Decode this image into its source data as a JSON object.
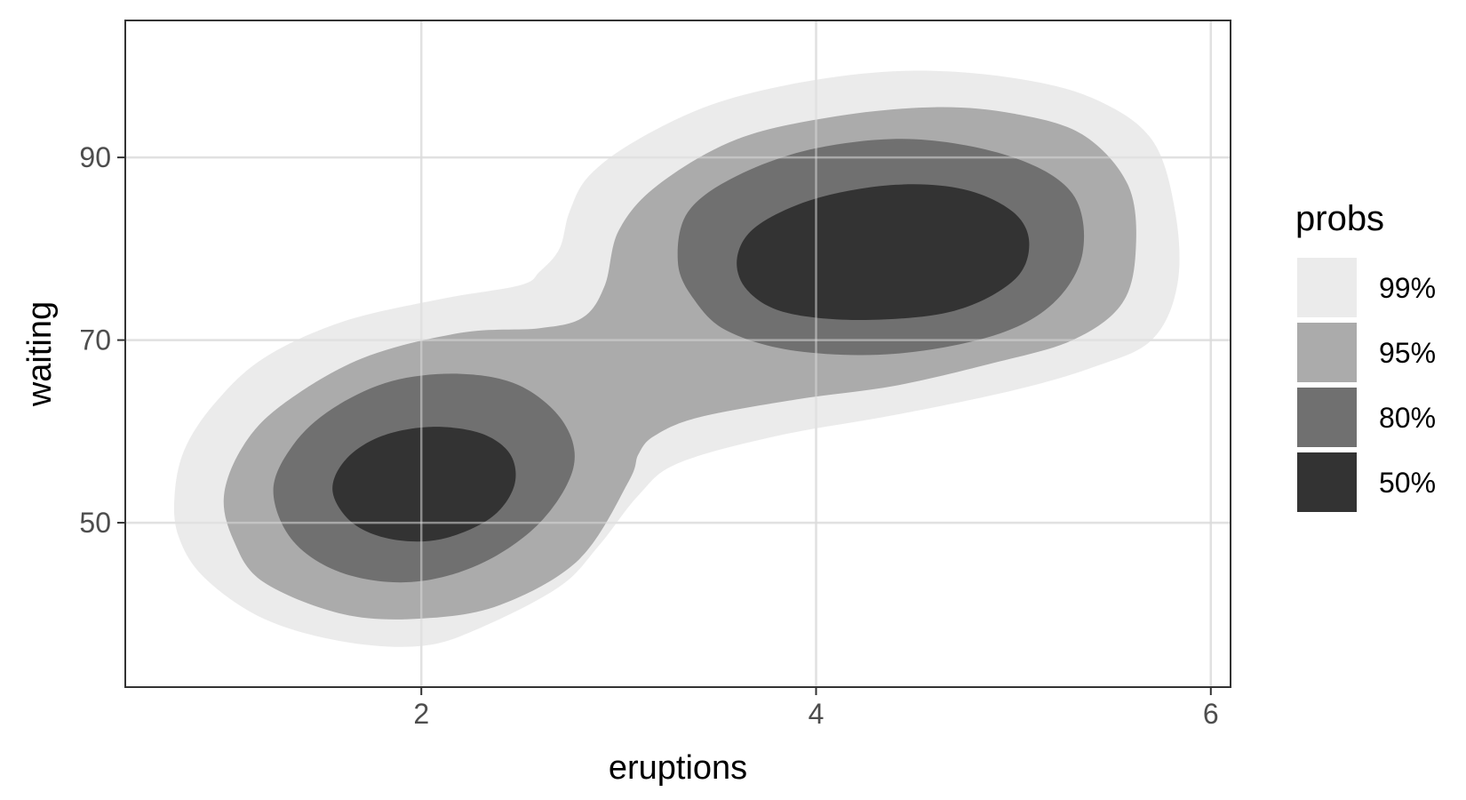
{
  "chart_data": {
    "type": "density_contour",
    "xlabel": "eruptions",
    "ylabel": "waiting",
    "xlim": [
      0.5,
      6.1
    ],
    "ylim": [
      32,
      105
    ],
    "x_ticks": [
      2,
      4,
      6
    ],
    "y_ticks": [
      50,
      70,
      90
    ],
    "x_tick_labels": [
      "2",
      "4",
      "6"
    ],
    "y_tick_labels": [
      "50",
      "70",
      "90"
    ],
    "grid": true,
    "legend": {
      "title": "probs",
      "position": "right",
      "entries": [
        {
          "label": "99%",
          "color": "#ebebeb"
        },
        {
          "label": "95%",
          "color": "#ababab"
        },
        {
          "label": "80%",
          "color": "#707070"
        },
        {
          "label": "50%",
          "color": "#333333"
        }
      ]
    },
    "series": [
      {
        "name": "99%",
        "color": "#ebebeb",
        "polygons": [
          [
            [
              0.75,
              53
            ],
            [
              0.8,
              58
            ],
            [
              0.95,
              63
            ],
            [
              1.2,
              68
            ],
            [
              1.6,
              72
            ],
            [
              2.1,
              74.5
            ],
            [
              2.5,
              76
            ],
            [
              2.6,
              77.5
            ],
            [
              2.7,
              80
            ],
            [
              2.75,
              84
            ],
            [
              2.85,
              88
            ],
            [
              3.1,
              92
            ],
            [
              3.5,
              96
            ],
            [
              4.0,
              98.5
            ],
            [
              4.5,
              99.5
            ],
            [
              5.0,
              98.7
            ],
            [
              5.4,
              96.5
            ],
            [
              5.7,
              92
            ],
            [
              5.82,
              84
            ],
            [
              5.83,
              76
            ],
            [
              5.7,
              70
            ],
            [
              5.4,
              67
            ],
            [
              5.0,
              64.5
            ],
            [
              4.4,
              61.8
            ],
            [
              3.8,
              59.5
            ],
            [
              3.3,
              56.5
            ],
            [
              3.1,
              53
            ],
            [
              2.9,
              47.5
            ],
            [
              2.7,
              43
            ],
            [
              2.3,
              38.5
            ],
            [
              2.0,
              36.5
            ],
            [
              1.6,
              37
            ],
            [
              1.2,
              39.5
            ],
            [
              0.9,
              44
            ],
            [
              0.77,
              48.5
            ]
          ]
        ]
      },
      {
        "name": "95%",
        "color": "#ababab",
        "polygons": [
          [
            [
              1.0,
              53
            ],
            [
              1.1,
              58.5
            ],
            [
              1.3,
              63
            ],
            [
              1.7,
              68
            ],
            [
              2.2,
              70.8
            ],
            [
              2.6,
              71.3
            ],
            [
              2.82,
              72.5
            ],
            [
              2.93,
              76
            ],
            [
              3.0,
              82
            ],
            [
              3.2,
              87
            ],
            [
              3.6,
              92
            ],
            [
              4.1,
              94.5
            ],
            [
              4.6,
              95.5
            ],
            [
              5.0,
              94.8
            ],
            [
              5.35,
              92.5
            ],
            [
              5.58,
              87
            ],
            [
              5.62,
              80
            ],
            [
              5.55,
              74
            ],
            [
              5.3,
              70
            ],
            [
              4.9,
              67.5
            ],
            [
              4.4,
              65
            ],
            [
              3.9,
              63.5
            ],
            [
              3.4,
              61.5
            ],
            [
              3.18,
              59.5
            ],
            [
              3.1,
              57.5
            ],
            [
              3.05,
              54.5
            ],
            [
              2.8,
              46
            ],
            [
              2.4,
              41
            ],
            [
              2.0,
              39.5
            ],
            [
              1.6,
              40
            ],
            [
              1.2,
              43.5
            ],
            [
              1.05,
              48
            ]
          ]
        ]
      },
      {
        "name": "80%",
        "color": "#707070",
        "polygons": [
          [
            [
              1.25,
              53.5
            ],
            [
              1.35,
              58.5
            ],
            [
              1.55,
              62.5
            ],
            [
              1.85,
              65.5
            ],
            [
              2.2,
              66.3
            ],
            [
              2.5,
              65
            ],
            [
              2.72,
              61
            ],
            [
              2.77,
              56
            ],
            [
              2.6,
              50
            ],
            [
              2.3,
              45.5
            ],
            [
              1.95,
              43.5
            ],
            [
              1.6,
              44.5
            ],
            [
              1.35,
              48
            ]
          ],
          [
            [
              3.3,
              78.5
            ],
            [
              3.35,
              84
            ],
            [
              3.6,
              88
            ],
            [
              4.0,
              91
            ],
            [
              4.5,
              92
            ],
            [
              5.0,
              90
            ],
            [
              5.3,
              86
            ],
            [
              5.35,
              79.5
            ],
            [
              5.2,
              74
            ],
            [
              4.9,
              70.5
            ],
            [
              4.4,
              68.5
            ],
            [
              3.9,
              68.8
            ],
            [
              3.55,
              71
            ],
            [
              3.38,
              74.5
            ]
          ]
        ]
      },
      {
        "name": "50%",
        "color": "#333333",
        "polygons": [
          [
            [
              1.55,
              53.5
            ],
            [
              1.62,
              57
            ],
            [
              1.8,
              59.5
            ],
            [
              2.05,
              60.5
            ],
            [
              2.3,
              59.8
            ],
            [
              2.45,
              57.5
            ],
            [
              2.47,
              54
            ],
            [
              2.35,
              50.5
            ],
            [
              2.1,
              48.2
            ],
            [
              1.85,
              48.2
            ],
            [
              1.65,
              50
            ]
          ],
          [
            [
              3.6,
              79
            ],
            [
              3.7,
              82.5
            ],
            [
              4.0,
              85.5
            ],
            [
              4.4,
              87
            ],
            [
              4.75,
              86.5
            ],
            [
              5.0,
              84
            ],
            [
              5.08,
              80.5
            ],
            [
              5.0,
              76.5
            ],
            [
              4.7,
              73.2
            ],
            [
              4.25,
              72.2
            ],
            [
              3.85,
              73
            ],
            [
              3.65,
              75.5
            ]
          ]
        ]
      }
    ]
  }
}
